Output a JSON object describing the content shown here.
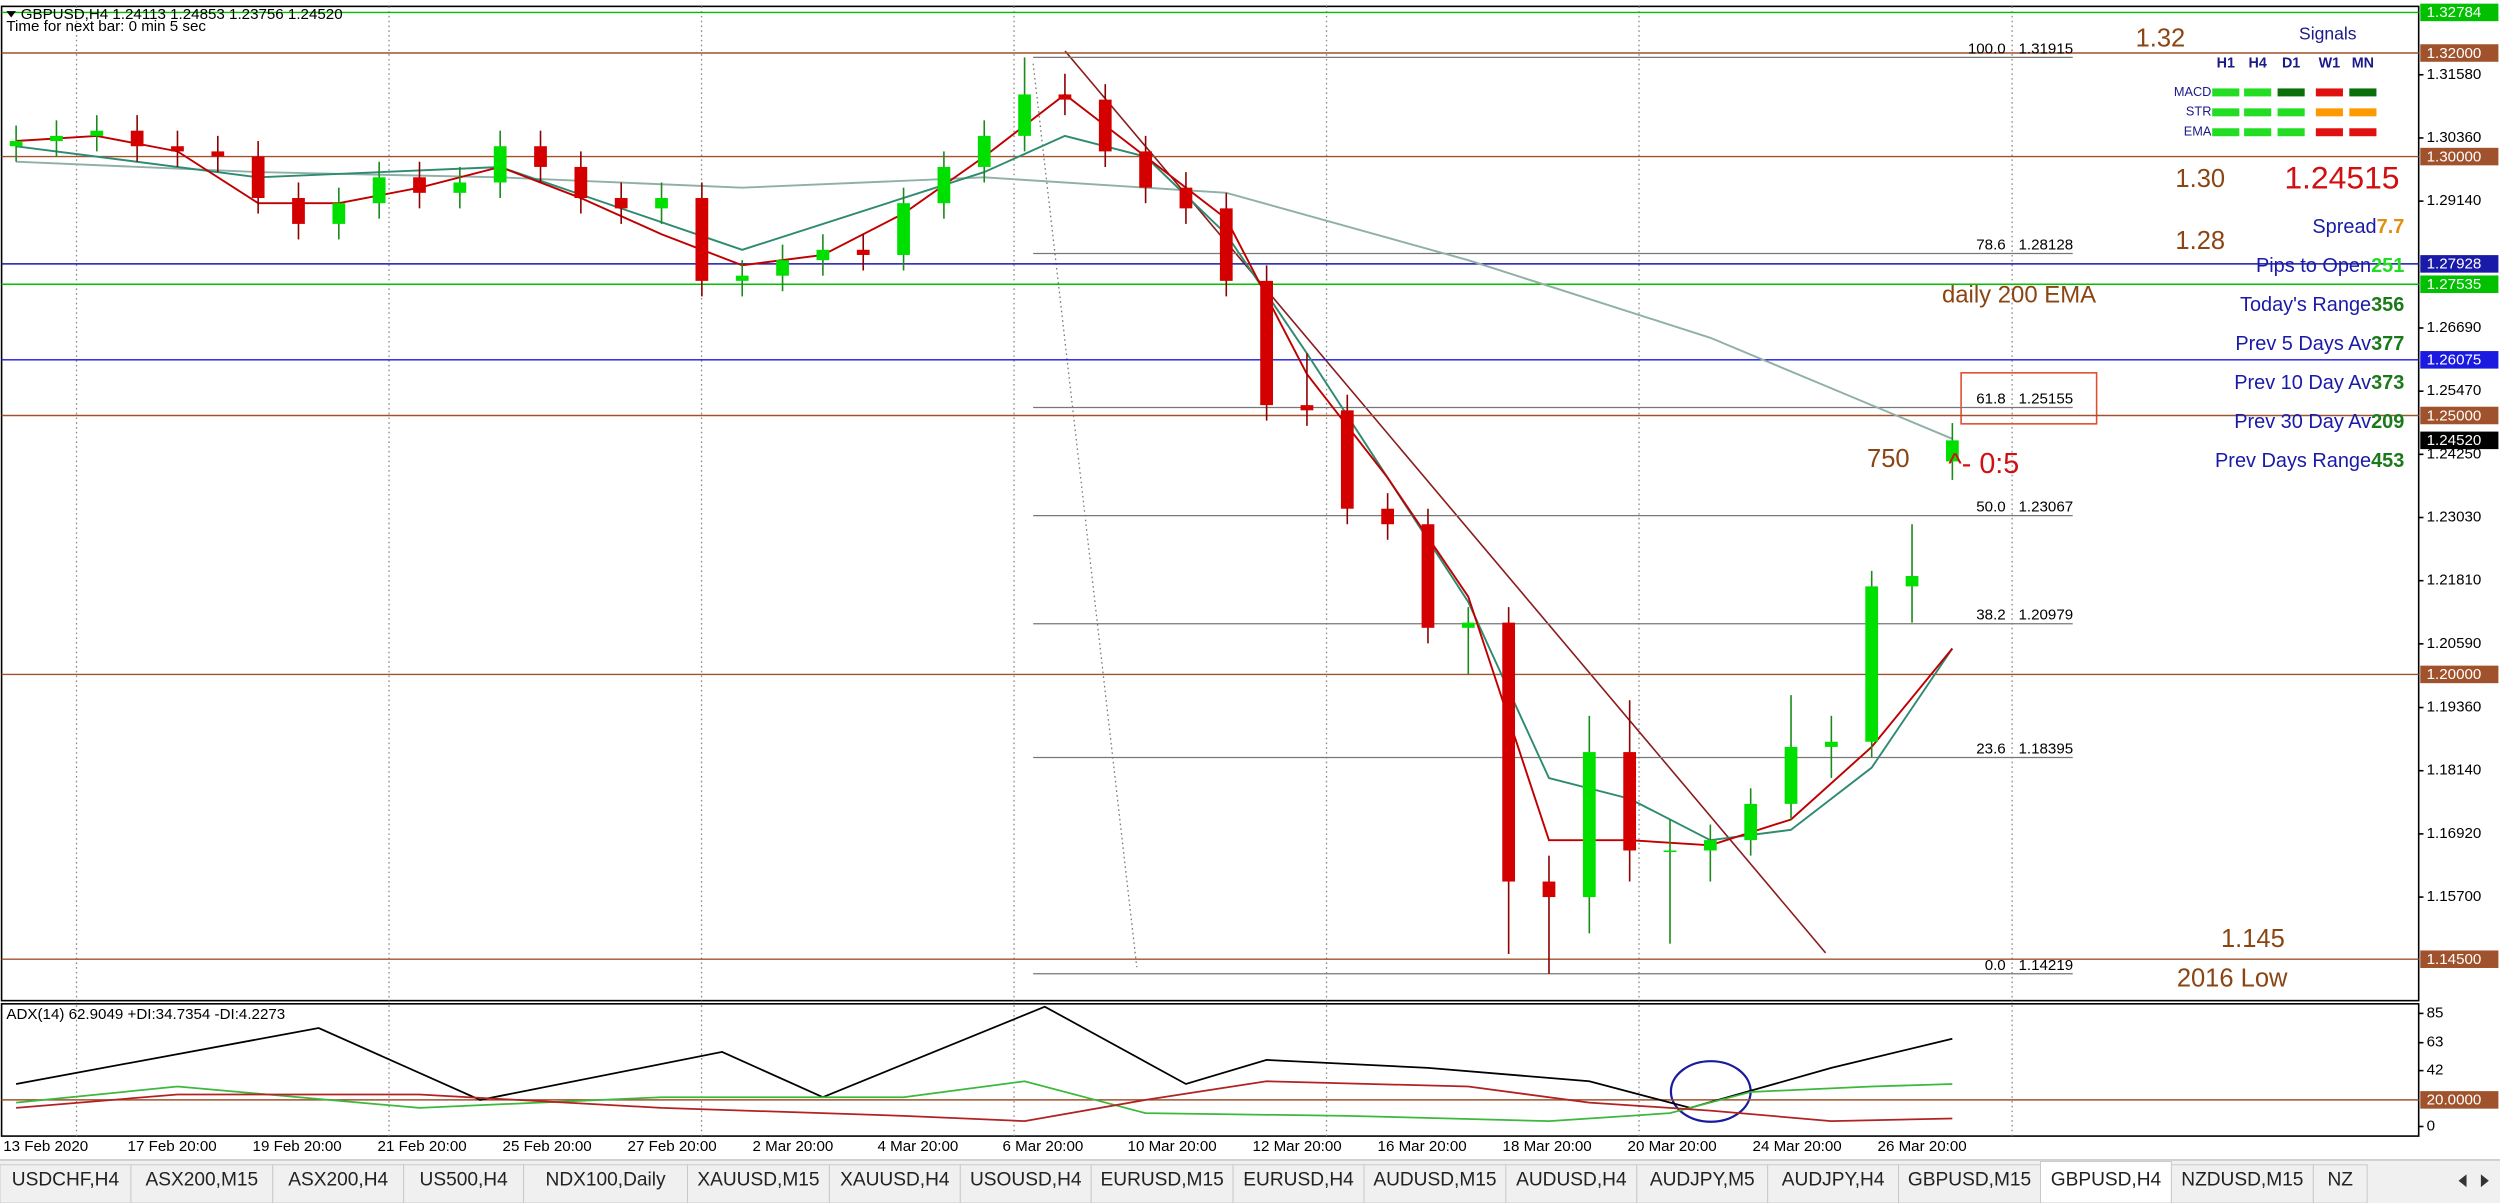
{
  "chart_data": {
    "type": "candlestick",
    "title": "GBPUSD,H4  1.24113 1.24853 1.23756 1.24520",
    "subtitle": "Time for next bar: 0 min 5 sec",
    "xlim": [
      -0.36,
      59.56
    ],
    "x_labels": [
      "13 Feb 2020",
      "17 Feb 20:00",
      "19 Feb 20:00",
      "21 Feb 20:00",
      "25 Feb 20:00",
      "27 Feb 20:00",
      "2 Mar 20:00",
      "4 Mar 20:00",
      "6 Mar 20:00",
      "10 Mar 20:00",
      "12 Mar 20:00",
      "16 Mar 20:00",
      "18 Mar 20:00",
      "20 Mar 20:00",
      "24 Mar 20:00",
      "26 Mar 20:00"
    ],
    "open": [
      1.302,
      1.303,
      1.304,
      1.305,
      1.302,
      1.301,
      1.3,
      1.292,
      1.287,
      1.291,
      1.296,
      1.293,
      1.295,
      1.302,
      1.298,
      1.292,
      1.29,
      1.292,
      1.276,
      1.277,
      1.28,
      1.282,
      1.281,
      1.291,
      1.298,
      1.304,
      1.312,
      1.311,
      1.301,
      1.294,
      1.29,
      1.276,
      1.252,
      1.251,
      1.232,
      1.229,
      1.209,
      1.21,
      1.16,
      1.157,
      1.185,
      1.166,
      1.166,
      1.168,
      1.175,
      1.186,
      1.187,
      1.217,
      1.24113
    ],
    "high": [
      1.306,
      1.307,
      1.308,
      1.308,
      1.305,
      1.304,
      1.303,
      1.295,
      1.294,
      1.299,
      1.299,
      1.298,
      1.305,
      1.305,
      1.301,
      1.295,
      1.295,
      1.295,
      1.28,
      1.283,
      1.285,
      1.285,
      1.294,
      1.301,
      1.307,
      1.31915,
      1.316,
      1.314,
      1.304,
      1.297,
      1.293,
      1.279,
      1.262,
      1.254,
      1.235,
      1.232,
      1.213,
      1.213,
      1.165,
      1.192,
      1.195,
      1.172,
      1.171,
      1.178,
      1.196,
      1.192,
      1.22,
      1.229,
      1.24853
    ],
    "low": [
      1.299,
      1.3,
      1.301,
      1.299,
      1.298,
      1.297,
      1.289,
      1.284,
      1.284,
      1.288,
      1.29,
      1.29,
      1.292,
      1.295,
      1.289,
      1.287,
      1.287,
      1.273,
      1.273,
      1.274,
      1.277,
      1.278,
      1.278,
      1.288,
      1.295,
      1.301,
      1.308,
      1.298,
      1.291,
      1.287,
      1.273,
      1.249,
      1.248,
      1.229,
      1.226,
      1.206,
      1.2,
      1.146,
      1.14219,
      1.15,
      1.16,
      1.148,
      1.16,
      1.165,
      1.172,
      1.18,
      1.184,
      1.21,
      1.23756
    ],
    "close": [
      1.303,
      1.304,
      1.305,
      1.302,
      1.301,
      1.3,
      1.292,
      1.287,
      1.291,
      1.296,
      1.293,
      1.295,
      1.302,
      1.298,
      1.292,
      1.29,
      1.292,
      1.276,
      1.277,
      1.28,
      1.282,
      1.281,
      1.291,
      1.298,
      1.304,
      1.312,
      1.311,
      1.301,
      1.294,
      1.29,
      1.276,
      1.252,
      1.251,
      1.232,
      1.229,
      1.209,
      1.21,
      1.16,
      1.157,
      1.185,
      1.166,
      1.166,
      1.168,
      1.175,
      1.186,
      1.187,
      1.217,
      1.219,
      1.2452
    ],
    "up_color": "#00e000",
    "down_color": "#d40000",
    "moving_averages": [
      {
        "color": "#8fb0a6",
        "x": [
          0,
          6,
          12,
          18,
          24,
          30,
          36,
          42,
          48
        ],
        "values": [
          1.299,
          1.297,
          1.296,
          1.294,
          1.296,
          1.293,
          1.28,
          1.265,
          1.2455
        ]
      },
      {
        "color": "#2e8b72",
        "x": [
          0,
          6,
          12,
          18,
          24,
          26,
          28,
          30,
          32,
          34,
          36,
          38,
          40,
          42,
          44,
          46,
          48
        ],
        "values": [
          1.302,
          1.296,
          1.298,
          1.282,
          1.297,
          1.304,
          1.3,
          1.285,
          1.262,
          1.238,
          1.214,
          1.18,
          1.176,
          1.168,
          1.17,
          1.182,
          1.205
        ]
      },
      {
        "color": "#c00000",
        "x": [
          0,
          2,
          4,
          6,
          8,
          10,
          12,
          14,
          16,
          18,
          20,
          22,
          24,
          26,
          28,
          30,
          32,
          34,
          36,
          38,
          40,
          42,
          44,
          46,
          48
        ],
        "values": [
          1.303,
          1.304,
          1.301,
          1.291,
          1.291,
          1.294,
          1.298,
          1.292,
          1.285,
          1.279,
          1.281,
          1.289,
          1.3,
          1.312,
          1.3,
          1.288,
          1.258,
          1.238,
          1.215,
          1.168,
          1.168,
          1.167,
          1.172,
          1.186,
          1.205
        ]
      }
    ],
    "ylim": [
      1.137,
      1.3287
    ],
    "yticks": [
      {
        "value": 1.3158,
        "label": "1.31580"
      },
      {
        "value": 1.3036,
        "label": "1.30360"
      },
      {
        "value": 1.2914,
        "label": "1.29140"
      },
      {
        "value": 1.2669,
        "label": "1.26690"
      },
      {
        "value": 1.2547,
        "label": "1.25470"
      },
      {
        "value": 1.2425,
        "label": "1.24250"
      },
      {
        "value": 1.2303,
        "label": "1.23030"
      },
      {
        "value": 1.2181,
        "label": "1.21810"
      },
      {
        "value": 1.2059,
        "label": "1.20590"
      },
      {
        "value": 1.1936,
        "label": "1.19360"
      },
      {
        "value": 1.1814,
        "label": "1.18140"
      },
      {
        "value": 1.1692,
        "label": "1.16920"
      },
      {
        "value": 1.157,
        "label": "1.15700"
      }
    ],
    "price_tags": [
      {
        "value": 1.32784,
        "label": "1.32784",
        "color": "#00c000",
        "line": true
      },
      {
        "value": 1.32,
        "label": "1.32000",
        "color": "#a0522d",
        "line": true
      },
      {
        "value": 1.3,
        "label": "1.30000",
        "color": "#a0522d",
        "line": true
      },
      {
        "value": 1.27928,
        "label": "1.27928",
        "color": "#1a1aa8",
        "line": true
      },
      {
        "value": 1.27535,
        "label": "1.27535",
        "color": "#00c000",
        "line": true
      },
      {
        "value": 1.26075,
        "label": "1.26075",
        "color": "#1a1ae0",
        "line": true
      },
      {
        "value": 1.25,
        "label": "1.25000",
        "color": "#a0522d",
        "line": true
      },
      {
        "value": 1.2452,
        "label": "1.24520",
        "color": "#000000",
        "line": false
      },
      {
        "value": 1.2,
        "label": "1.20000",
        "color": "#a0522d",
        "line": true
      },
      {
        "value": 1.145,
        "label": "1.14500",
        "color": "#a0522d",
        "line": true
      }
    ],
    "fib": [
      {
        "level": {
          "value": 100,
          "label": "100.0"
        },
        "value": 1.31915
      },
      {
        "level": 78.6,
        "value": 1.28128
      },
      {
        "level": 61.8,
        "value": 1.25155
      },
      {
        "level": {
          "value": 50,
          "label": "50.0"
        },
        "value": 1.23067
      },
      {
        "level": 38.2,
        "value": 1.20979
      },
      {
        "level": 23.6,
        "value": 1.18395
      },
      {
        "level": {
          "value": 0,
          "label": "0.0"
        },
        "value": 1.14219
      }
    ],
    "adx": {
      "title": "ADX(14) 62.9049 +DI:34.7354 -DI:4.2273",
      "ylim": [
        -7.2,
        92.2
      ],
      "yticks": [
        85,
        63,
        42,
        0
      ],
      "level": {
        "value": 20,
        "label": "20.0000",
        "color": "#a0522d"
      },
      "series": [
        {
          "color": "#000000",
          "x": [
            0,
            7.5,
            11.5,
            17.5,
            20,
            25.5,
            29,
            31,
            35,
            39,
            41.5,
            45,
            48
          ],
          "values": [
            32,
            74,
            20,
            56,
            22,
            90,
            32,
            50,
            44,
            34,
            14,
            44,
            66
          ]
        },
        {
          "color": "#3cb83c",
          "x": [
            0,
            4,
            10,
            16,
            22,
            25,
            28,
            33,
            38,
            41,
            43,
            46,
            48
          ],
          "values": [
            18,
            30,
            14,
            22,
            22,
            34,
            10,
            8,
            4,
            10,
            26,
            30,
            32
          ]
        },
        {
          "color": "#b22222",
          "x": [
            0,
            4,
            10,
            16,
            22,
            25,
            28,
            31,
            36,
            39,
            42,
            45,
            48
          ],
          "values": [
            14,
            24,
            24,
            14,
            8,
            4,
            20,
            34,
            30,
            18,
            12,
            4,
            6
          ]
        }
      ]
    }
  },
  "annotations": [
    "1.32",
    "1.30",
    "1.28",
    "daily 200 EMA",
    750,
    "^- 0:5",
    "1.145",
    "2016 Low"
  ],
  "bid": 1.24515,
  "signals": {
    "title": "Signals",
    "columns": [
      "H1",
      "H4",
      "D1",
      "W1",
      "MN"
    ],
    "rows": [
      {
        "label": "MACD",
        "colors": [
          "#22dd22",
          "#22dd22",
          "#0a6e0a",
          "#e01010",
          "#0a6e0a"
        ]
      },
      {
        "label": "STR",
        "colors": [
          "#22dd22",
          "#22dd22",
          "#22dd22",
          "#ff9900",
          "#ff9900"
        ]
      },
      {
        "label": "EMA",
        "colors": [
          "#22dd22",
          "#22dd22",
          "#22dd22",
          "#e01010",
          "#e01010"
        ]
      }
    ]
  },
  "info": [
    {
      "label": "Spread",
      "value": 7.7,
      "color": "#e09010"
    },
    {
      "label": "Pips to Open",
      "value": 251,
      "color": "#22dd22"
    },
    {
      "label": "Today's Range",
      "value": 356,
      "color": "#1a7a1a"
    },
    {
      "label": "Prev 5 Days Av",
      "value": 377,
      "color": "#1a7a1a"
    },
    {
      "label": "Prev 10 Day Av",
      "value": 373,
      "color": "#1a7a1a"
    },
    {
      "label": "Prev 30 Day Av",
      "value": 209,
      "color": "#1a7a1a"
    },
    {
      "label": "Prev Days Range",
      "value": 453,
      "color": "#1a7a1a"
    }
  ],
  "tabs": {
    "items": [
      "USDCHF,H4",
      "ASX200,M15",
      "ASX200,H4",
      "US500,H4",
      "NDX100,Daily",
      "XAUUSD,M15",
      "XAUUSD,H4",
      "USOUSD,H4",
      "EURUSD,M15",
      "EURUSD,H4",
      "AUDUSD,M15",
      "AUDUSD,H4",
      "AUDJPY,M5",
      "AUDJPY,H4",
      "GBPUSD,M15",
      "GBPUSD,H4",
      "NZDUSD,M15",
      "NZ"
    ],
    "active": "GBPUSD,H4"
  }
}
